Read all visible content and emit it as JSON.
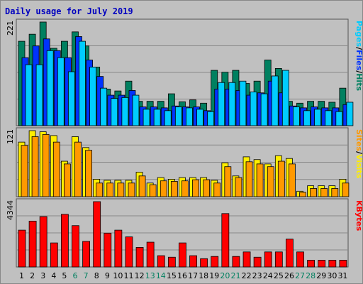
{
  "title": "Daily usage for July 2019",
  "chart_data": [
    {
      "type": "bar",
      "panel": "top",
      "ymax_label": "221",
      "ymax": 221,
      "right_labels": [
        "Pages",
        "/",
        "Files",
        "/",
        "Hits"
      ],
      "right_colors": [
        "#00ccff",
        "#000000",
        "#0033ff",
        "#000000",
        "#008060"
      ],
      "series": [
        {
          "name": "Hits",
          "color": "#008060",
          "values": [
            180,
            195,
            221,
            165,
            180,
            200,
            170,
            125,
            78,
            74,
            95,
            52,
            52,
            52,
            68,
            51,
            55,
            48,
            118,
            114,
            118,
            90,
            95,
            140,
            122,
            52,
            48,
            52,
            52,
            50,
            80
          ]
        },
        {
          "name": "Files",
          "color": "#0033ff",
          "values": [
            145,
            170,
            185,
            160,
            145,
            190,
            140,
            105,
            65,
            65,
            75,
            40,
            40,
            38,
            42,
            40,
            40,
            32,
            78,
            78,
            75,
            65,
            70,
            95,
            70,
            42,
            38,
            40,
            38,
            38,
            45
          ]
        },
        {
          "name": "Pages",
          "color": "#00ccff",
          "values": [
            130,
            130,
            160,
            145,
            115,
            180,
            125,
            80,
            58,
            60,
            65,
            35,
            35,
            32,
            40,
            38,
            35,
            30,
            92,
            92,
            95,
            72,
            68,
            106,
            118,
            40,
            32,
            35,
            32,
            30,
            50
          ]
        }
      ]
    },
    {
      "type": "bar",
      "panel": "middle",
      "ymax_label": "121",
      "ymax": 121,
      "right_labels": [
        "Sites",
        "/",
        "Visits"
      ],
      "right_colors": [
        "#ff9900",
        "#000000",
        "#ffee00"
      ],
      "series": [
        {
          "name": "Visits",
          "color": "#ffee00",
          "values": [
            100,
            121,
            119,
            112,
            65,
            110,
            90,
            32,
            30,
            30,
            30,
            45,
            25,
            35,
            32,
            35,
            35,
            35,
            30,
            62,
            38,
            73,
            68,
            60,
            75,
            70,
            10,
            20,
            20,
            20,
            32
          ]
        },
        {
          "name": "Sites",
          "color": "#ff9900",
          "values": [
            94,
            110,
            114,
            100,
            60,
            100,
            85,
            25,
            25,
            25,
            25,
            38,
            22,
            29,
            28,
            29,
            31,
            31,
            25,
            55,
            35,
            64,
            60,
            55,
            65,
            60,
            8,
            15,
            15,
            15,
            25
          ]
        }
      ]
    },
    {
      "type": "bar",
      "panel": "bottom",
      "ymax_label": "4344",
      "ymax": 4344,
      "right_labels": [
        "KBytes"
      ],
      "right_colors": [
        "#ff0000"
      ],
      "series": [
        {
          "name": "KBytes",
          "color": "#ff0000",
          "values": [
            2450,
            3050,
            3350,
            1600,
            3500,
            2750,
            1700,
            4344,
            2250,
            2450,
            2000,
            1300,
            1650,
            750,
            650,
            1600,
            750,
            550,
            700,
            3550,
            700,
            1000,
            650,
            1000,
            1000,
            1850,
            1000,
            450,
            450,
            450,
            450
          ]
        }
      ]
    }
  ],
  "days": [
    "1",
    "2",
    "3",
    "4",
    "5",
    "6",
    "7",
    "8",
    "9",
    "10",
    "11",
    "12",
    "13",
    "14",
    "15",
    "16",
    "17",
    "18",
    "19",
    "20",
    "21",
    "22",
    "23",
    "24",
    "25",
    "26",
    "27",
    "28",
    "29",
    "30",
    "31"
  ],
  "weekend_days": [
    "6",
    "7",
    "13",
    "14",
    "20",
    "21",
    "27",
    "28"
  ],
  "colors": {
    "weekday": "#000000",
    "weekend": "#008060",
    "title": "#0000c0",
    "background": "#c0c0c0"
  }
}
